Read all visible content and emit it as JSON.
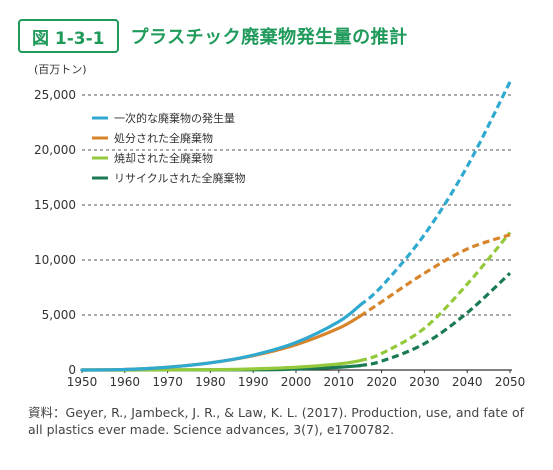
{
  "figure": {
    "number": "図 1-3-1",
    "title": "プラスチック廃棄物発生量の推計"
  },
  "source": {
    "label": "資料：",
    "text": "Geyer, R., Jambeck, J. R., & Law, K. L. (2017). Production, use, and fate of all plastics ever made. Science advances, 3(7), e1700782."
  },
  "colors": {
    "accent": "#1f9a5a",
    "grid": "#555555"
  },
  "chart_data": {
    "type": "line",
    "y_unit": "(百万トン)",
    "xlim": [
      1950,
      2050
    ],
    "ylim": [
      0,
      26000
    ],
    "x_ticks": [
      1950,
      1960,
      1970,
      1980,
      1990,
      2000,
      2010,
      2020,
      2030,
      2040,
      2050
    ],
    "y_ticks": [
      0,
      5000,
      10000,
      15000,
      20000,
      25000
    ],
    "y_tick_labels": [
      "0",
      "5,000",
      "10,000",
      "15,000",
      "20,000",
      "25,000"
    ],
    "grid": "horizontal dashed",
    "legend_position": "top-left",
    "series": [
      {
        "name": "一次的な廃棄物の発生量",
        "color": "#2fa9cf",
        "x": [
          1950,
          1960,
          1970,
          1980,
          1990,
          2000,
          2010,
          2015,
          2020,
          2030,
          2040,
          2050
        ],
        "y": [
          0,
          50,
          250,
          650,
          1350,
          2500,
          4400,
          5900,
          7600,
          12300,
          18500,
          26200
        ]
      },
      {
        "name": "処分された全廃棄物",
        "color": "#d8842a",
        "x": [
          1950,
          1960,
          1970,
          1980,
          1990,
          2000,
          2010,
          2015,
          2020,
          2030,
          2040,
          2050
        ],
        "y": [
          0,
          50,
          250,
          650,
          1300,
          2300,
          3800,
          4900,
          6200,
          8800,
          11000,
          12300
        ]
      },
      {
        "name": "焼却された全廃棄物",
        "color": "#93c93a",
        "x": [
          1950,
          1980,
          1990,
          2000,
          2010,
          2015,
          2020,
          2030,
          2040,
          2050
        ],
        "y": [
          0,
          30,
          100,
          250,
          550,
          850,
          1500,
          3800,
          7800,
          12500
        ]
      },
      {
        "name": "リサイクルされた全廃棄物",
        "color": "#1a7a52",
        "x": [
          1950,
          1990,
          2000,
          2010,
          2015,
          2020,
          2030,
          2040,
          2050
        ],
        "y": [
          0,
          20,
          100,
          250,
          400,
          800,
          2400,
          5200,
          8800
        ]
      }
    ]
  }
}
